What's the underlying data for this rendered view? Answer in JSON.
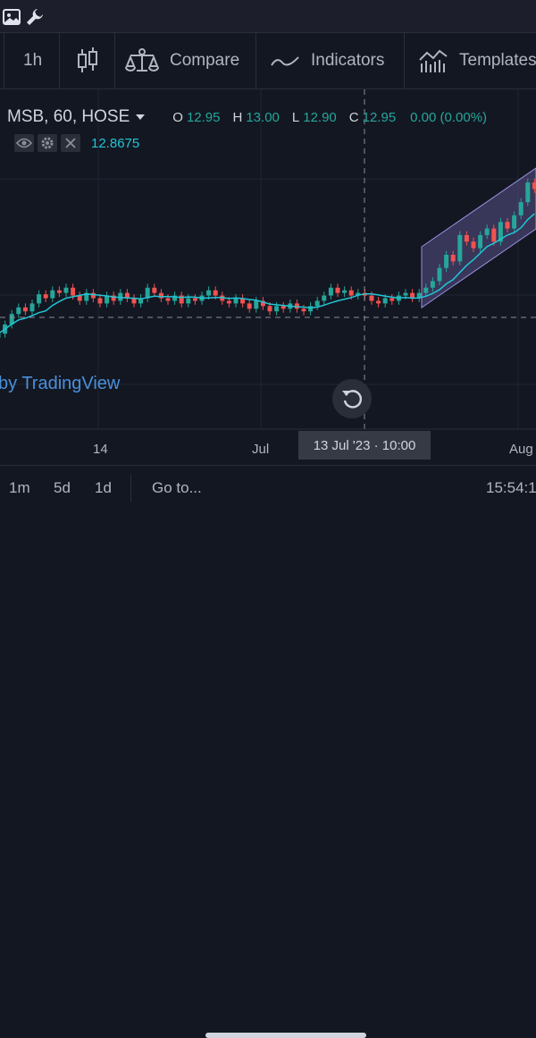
{
  "toolbar": {
    "interval": "1h",
    "compare": "Compare",
    "indicators": "Indicators",
    "templates": "Templates"
  },
  "legend": {
    "symbol": "MSB, 60, HOSE",
    "open_key": "O",
    "open": "12.95",
    "high_key": "H",
    "high": "13.00",
    "low_key": "L",
    "low": "12.90",
    "close_key": "C",
    "close": "12.95",
    "change": "0.00 (0.00%)"
  },
  "indicator": {
    "value": "12.8675"
  },
  "watermark": "by TradingView",
  "xaxis": {
    "labels": [
      "14",
      "Jul",
      "Aug"
    ],
    "crosshair_time": "13 Jul '23 · 10:00"
  },
  "bottombar": {
    "ranges": [
      "1m",
      "5d",
      "1d"
    ],
    "goto": "Go to...",
    "clock": "15:54:1"
  },
  "colors": {
    "up": "#26a69a",
    "down": "#ef5350",
    "ma": "#22c5d5",
    "channel": "#7e6fbf",
    "background": "#131722"
  },
  "icons": [
    "image-icon",
    "wrench-icon",
    "candles-icon",
    "compare-icon",
    "indicators-icon",
    "templates-icon",
    "eye-icon",
    "settings-icon",
    "close-icon",
    "dropdown-arrow-icon",
    "replay-icon"
  ],
  "chart_data": {
    "type": "candlestick",
    "series": [
      {
        "name": "MSB, 60, HOSE",
        "close": [
          12.55,
          12.62,
          12.7,
          12.75,
          12.72,
          12.78,
          12.85,
          12.82,
          12.88,
          12.86,
          12.9,
          12.84,
          12.8,
          12.86,
          12.82,
          12.78,
          12.84,
          12.8,
          12.86,
          12.82,
          12.78,
          12.82,
          12.9,
          12.86,
          12.82,
          12.8,
          12.84,
          12.78,
          12.82,
          12.8,
          12.84,
          12.88,
          12.84,
          12.8,
          12.78,
          12.82,
          12.78,
          12.74,
          12.8,
          12.76,
          12.72,
          12.76,
          12.74,
          12.78,
          12.74,
          12.72,
          12.76,
          12.8,
          12.84,
          12.9,
          12.86,
          12.88,
          12.84,
          12.86,
          12.84,
          12.8,
          12.78,
          12.82,
          12.8,
          12.84,
          12.86,
          12.82,
          12.86,
          12.9,
          12.95,
          13.05,
          13.15,
          13.1,
          13.3,
          13.25,
          13.2,
          13.3,
          13.35,
          13.25,
          13.4,
          13.35,
          13.45,
          13.55,
          13.7,
          13.65
        ]
      }
    ],
    "moving_average": {
      "last": 12.8675
    },
    "crosshair": {
      "x": "13 Jul '23 · 10:00",
      "y": 12.75
    }
  }
}
